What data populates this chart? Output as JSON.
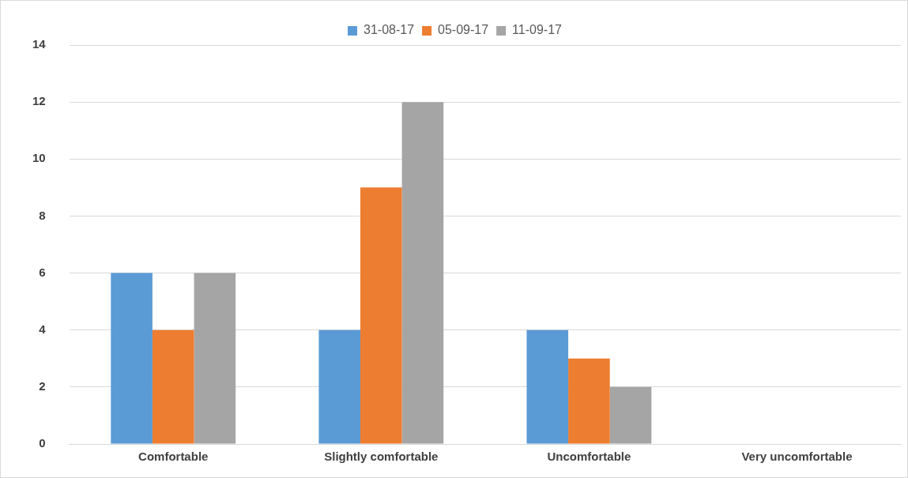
{
  "chart_data": {
    "type": "bar",
    "categories": [
      "Comfortable",
      "Slightly comfortable",
      "Uncomfortable",
      "Very uncomfortable"
    ],
    "series": [
      {
        "name": "31-08-17",
        "color": "#5b9bd5",
        "values": [
          6,
          4,
          4,
          0
        ]
      },
      {
        "name": "05-09-17",
        "color": "#ed7d31",
        "values": [
          4,
          9,
          3,
          0
        ]
      },
      {
        "name": "11-09-17",
        "color": "#a5a5a5",
        "values": [
          6,
          12,
          2,
          0
        ]
      }
    ],
    "ylim": [
      0,
      14
    ],
    "yticks": [
      0,
      2,
      4,
      6,
      8,
      10,
      12,
      14
    ],
    "grid": "y",
    "legend": "top"
  }
}
